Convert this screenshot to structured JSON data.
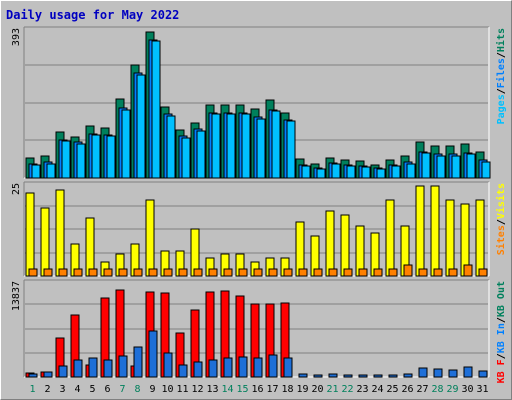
{
  "chart_data": {
    "type": "bar",
    "title": "Daily usage for May 2022",
    "categories": [
      "1",
      "2",
      "3",
      "4",
      "5",
      "6",
      "7",
      "8",
      "9",
      "10",
      "11",
      "12",
      "13",
      "14",
      "15",
      "16",
      "17",
      "18",
      "19",
      "20",
      "21",
      "22",
      "23",
      "24",
      "25",
      "26",
      "27",
      "28",
      "29",
      "30",
      "31"
    ],
    "weekend_days": [
      "1",
      "7",
      "8",
      "14",
      "15",
      "21",
      "22",
      "28",
      "29"
    ],
    "panels": [
      {
        "id": "hits_files_pages",
        "ymax_label": "393",
        "ymax": 393,
        "axis_label_parts": [
          {
            "text": "Pages",
            "color": "#00c0ff"
          },
          {
            "text": "/",
            "color": "#000000"
          },
          {
            "text": "Files",
            "color": "#0080ff"
          },
          {
            "text": "/",
            "color": "#000000"
          },
          {
            "text": "Hits",
            "color": "#00805c"
          }
        ],
        "series": [
          {
            "name": "Hits",
            "color": "#00805c",
            "values": [
              53,
              58,
              122,
              109,
              139,
              135,
              211,
              301,
              390,
              189,
              128,
              148,
              194,
              194,
              196,
              184,
              209,
              175,
              52,
              38,
              54,
              48,
              46,
              36,
              49,
              58,
              95,
              85,
              85,
              90,
              70
            ]
          },
          {
            "name": "Files",
            "color": "#0080ff",
            "values": [
              38,
              42,
              102,
              96,
              118,
              116,
              188,
              282,
              370,
              170,
              112,
              130,
              174,
              174,
              174,
              163,
              182,
              156,
              36,
              27,
              41,
              36,
              33,
              27,
              36,
              42,
              70,
              63,
              63,
              67,
              48
            ]
          },
          {
            "name": "Pages",
            "color": "#00c0ff",
            "values": [
              34,
              38,
              98,
              92,
              115,
              112,
              183,
              276,
              366,
              165,
              108,
              126,
              170,
              170,
              170,
              159,
              178,
              152,
              32,
              24,
              37,
              32,
              29,
              23,
              33,
              38,
              66,
              59,
              59,
              63,
              44
            ]
          }
        ]
      },
      {
        "id": "visits_sites",
        "ymax_label": "25",
        "ymax": 25,
        "axis_label_parts": [
          {
            "text": "Sites",
            "color": "#ff8000"
          },
          {
            "text": "/",
            "color": "#000000"
          },
          {
            "text": "Visits",
            "color": "#ffff00"
          }
        ],
        "series": [
          {
            "name": "Visits",
            "color": "#ffff00",
            "values": [
              23,
              19,
              24,
              9,
              16,
              4,
              6,
              9,
              21,
              7,
              7,
              13,
              5,
              6,
              6,
              4,
              5,
              5,
              15,
              11,
              18,
              17,
              14,
              12,
              21,
              14,
              25,
              25,
              21,
              20,
              21
            ]
          },
          {
            "name": "Sites",
            "color": "#ff8000",
            "values": [
              2,
              2,
              2,
              2,
              2,
              2,
              2,
              2,
              2,
              2,
              2,
              2,
              2,
              2,
              2,
              2,
              2,
              2,
              2,
              2,
              2,
              2,
              2,
              2,
              2,
              3,
              2,
              2,
              2,
              3,
              2
            ]
          }
        ]
      },
      {
        "id": "kbytes",
        "ymax_label": "13837",
        "ymax": 13837,
        "axis_label_parts": [
          {
            "text": "KB F",
            "color": "#ff0000"
          },
          {
            "text": "/",
            "color": "#000000"
          },
          {
            "text": "KB In",
            "color": "#0080ff"
          },
          {
            "text": "/",
            "color": "#000000"
          },
          {
            "text": "KB Out",
            "color": "#00805c"
          }
        ],
        "series": [
          {
            "name": "KB F",
            "color": "#ff0000",
            "values": [
              650,
              700,
              5770,
              9190,
              1830,
              11810,
              12900,
              1660,
              12590,
              12560,
              6530,
              10030,
              12650,
              12800,
              12010,
              10860,
              10860,
              10970,
              0,
              0,
              0,
              0,
              0,
              0,
              0,
              0,
              0,
              0,
              0,
              0,
              0
            ]
          },
          {
            "name": "KB In",
            "color": "#1e6fd8",
            "values": [
              490,
              790,
              1610,
              2500,
              2840,
              2510,
              3110,
              4470,
              6800,
              3510,
              1830,
              2200,
              2510,
              2800,
              3000,
              2800,
              3250,
              2800,
              380,
              330,
              380,
              330,
              350,
              330,
              330,
              380,
              1350,
              1200,
              1050,
              1500,
              850
            ]
          }
        ]
      }
    ]
  }
}
